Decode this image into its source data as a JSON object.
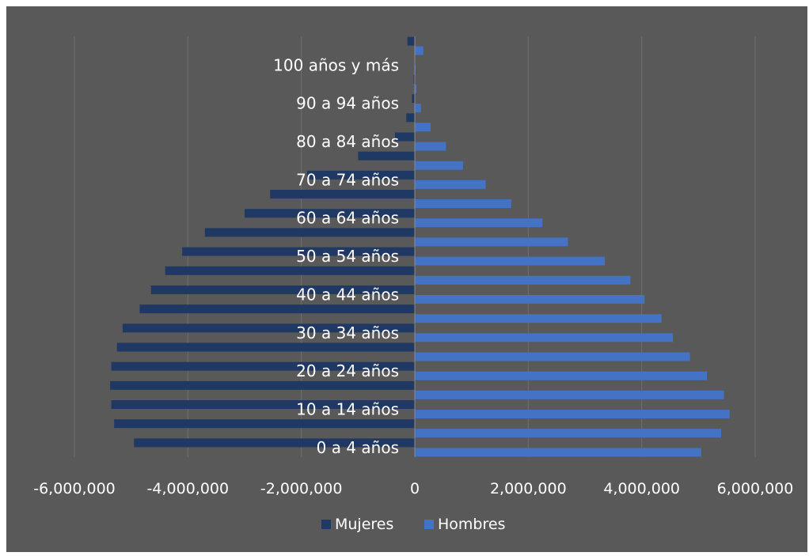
{
  "chart_data": {
    "type": "bar",
    "orientation": "horizontal",
    "title": "",
    "xlabel": "",
    "ylabel": "",
    "xlim": [
      -6000000,
      6000000
    ],
    "x_ticks": [
      -6000000,
      -4000000,
      -2000000,
      0,
      2000000,
      4000000,
      6000000
    ],
    "x_tick_labels": [
      "-6,000,000",
      "-4,000,000",
      "-2,000,000",
      "0",
      "2,000,000",
      "4,000,000",
      "6,000,000"
    ],
    "grid": "vertical",
    "legend": "bottom",
    "categories": [
      "0 a 4 años",
      "",
      "10 a 14 años",
      "",
      "20 a 24 años",
      "",
      "30 a 34 años",
      "",
      "40 a 44 años",
      "",
      "50 a 54 años",
      "",
      "60 a 64 años",
      "",
      "70 a 74 años",
      "",
      "80 a 84 años",
      "",
      "90 a 94 años",
      "",
      "100 años y más",
      ""
    ],
    "series": [
      {
        "name": "Mujeres",
        "color": "#203864",
        "values": [
          -4950000,
          -5300000,
          -5350000,
          -5370000,
          -5350000,
          -5250000,
          -5150000,
          -4850000,
          -4650000,
          -4400000,
          -4100000,
          -3700000,
          -3000000,
          -2550000,
          -1900000,
          -1000000,
          -350000,
          -150000,
          -50000,
          -20000,
          -8000,
          -130000
        ]
      },
      {
        "name": "Hombres",
        "color": "#4472C4",
        "values": [
          5050000,
          5400000,
          5550000,
          5450000,
          5150000,
          4850000,
          4550000,
          4350000,
          4050000,
          3800000,
          3350000,
          2700000,
          2250000,
          1700000,
          1250000,
          850000,
          550000,
          280000,
          110000,
          30000,
          8000,
          150000
        ]
      }
    ]
  }
}
